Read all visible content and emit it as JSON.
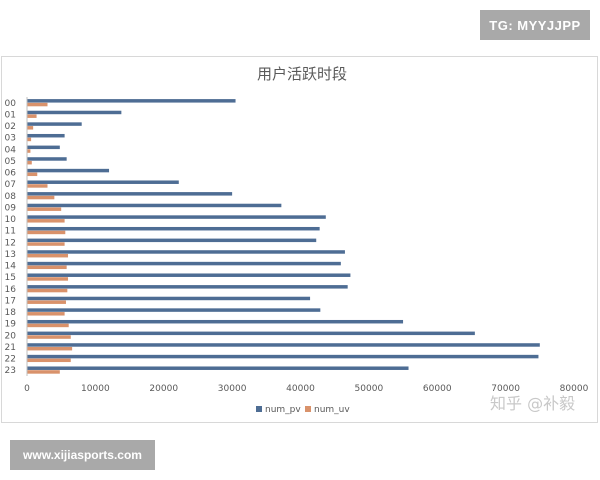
{
  "watermarks": {
    "tg": "TG: MYYJJPP",
    "site": "www.xijiasports.com",
    "zhihu": "知乎 @补毅"
  },
  "colors": {
    "pv": "#4e6d94",
    "uv": "#d9926b",
    "axis": "#bfbfbf",
    "text": "#595959",
    "title": "#595959"
  },
  "chart_data": {
    "type": "bar",
    "orientation": "horizontal",
    "title": "用户活跃时段",
    "xlabel": "",
    "ylabel": "",
    "xlim": [
      0,
      80000
    ],
    "xticks": [
      "0",
      "10000",
      "20000",
      "30000",
      "40000",
      "50000",
      "60000",
      "70000",
      "80000"
    ],
    "xtick_values": [
      0,
      10000,
      20000,
      30000,
      40000,
      50000,
      60000,
      70000,
      80000
    ],
    "categories": [
      "00",
      "01",
      "02",
      "03",
      "04",
      "05",
      "06",
      "07",
      "08",
      "09",
      "10",
      "11",
      "12",
      "13",
      "14",
      "15",
      "16",
      "17",
      "18",
      "19",
      "20",
      "21",
      "22",
      "23"
    ],
    "series": [
      {
        "name": "num_pv",
        "values": [
          30500,
          13800,
          8000,
          5500,
          4800,
          5800,
          12000,
          22200,
          30000,
          37200,
          43700,
          42800,
          42300,
          46500,
          45900,
          47300,
          46900,
          41400,
          42900,
          55000,
          65500,
          75000,
          74800,
          55800
        ]
      },
      {
        "name": "num_uv",
        "values": [
          3000,
          1400,
          900,
          600,
          500,
          700,
          1500,
          3000,
          4000,
          5000,
          5500,
          5600,
          5500,
          6000,
          5800,
          6000,
          5900,
          5700,
          5500,
          6100,
          6400,
          6600,
          6400,
          4800
        ]
      }
    ],
    "legend": [
      "num_pv",
      "num_uv"
    ],
    "legend_position": "bottom"
  }
}
